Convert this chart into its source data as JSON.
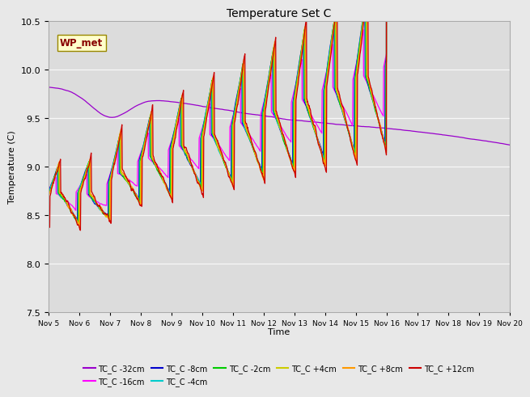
{
  "title": "Temperature Set C",
  "xlabel": "Time",
  "ylabel": "Temperature (C)",
  "ylim": [
    7.5,
    10.5
  ],
  "xlim": [
    0,
    15
  ],
  "x_tick_labels": [
    "Nov 5",
    "Nov 6",
    "Nov 7",
    "Nov 8",
    "Nov 9",
    "Nov 10",
    "Nov 11",
    "Nov 12",
    "Nov 13",
    "Nov 14",
    "Nov 15",
    "Nov 16",
    "Nov 17",
    "Nov 18",
    "Nov 19",
    "Nov 20"
  ],
  "series_labels": [
    "TC_C -32cm",
    "TC_C -16cm",
    "TC_C -8cm",
    "TC_C -4cm",
    "TC_C -2cm",
    "TC_C +4cm",
    "TC_C +8cm",
    "TC_C +12cm"
  ],
  "series_colors": [
    "#9900cc",
    "#ff00ff",
    "#0000cc",
    "#00cccc",
    "#00cc00",
    "#cccc00",
    "#ff9900",
    "#cc0000"
  ],
  "wp_met_label": "WP_met",
  "fig_bg": "#e8e8e8",
  "plot_bg": "#dcdcdc"
}
